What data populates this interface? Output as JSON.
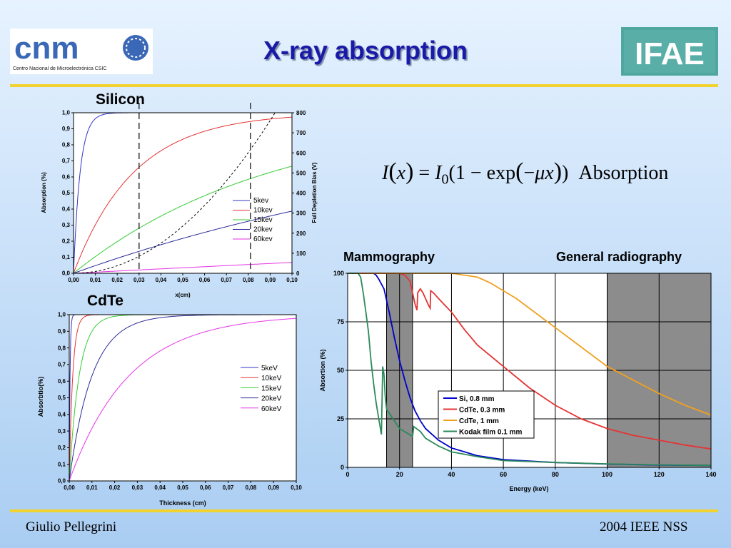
{
  "header": {
    "title": "X-ray absorption",
    "logo_left_text": "cnm",
    "logo_left_caption": "Centro Nacional de Microelectrónica     CSIC",
    "logo_right_text": "IFAE"
  },
  "labels": {
    "silicon": "Silicon",
    "cdte": "CdTe",
    "mammography": "Mammography",
    "general_radiography": "General radiography"
  },
  "formula": {
    "I": "I",
    "x": "x",
    "I0": "I",
    "sub0": "0",
    "mu": "μ",
    "word": "Absorption"
  },
  "footer": {
    "author": "Giulio Pellegrini",
    "event": "2004 IEEE NSS"
  },
  "colors": {
    "blue": "#3333cc",
    "red": "#e63333",
    "green": "#33cc33",
    "navy": "#2a2a9a",
    "magenta": "#e633e6",
    "dark_blue": "#0000cc",
    "orange": "#f0a020",
    "teal": "#2a8a5a",
    "accent_rule": "#f2d22e",
    "title": "#1a1aa8"
  },
  "chart_data": [
    {
      "id": "silicon",
      "type": "line",
      "ylabel": "Absorption (%)",
      "y2label": "Full Depletion Bias (V)",
      "xlabel": "x(cm)",
      "xlim": [
        0,
        0.1
      ],
      "ylim": [
        0,
        1
      ],
      "y2lim": [
        0,
        800
      ],
      "x_ticks": [
        "0,00",
        "0,01",
        "0,02",
        "0,03",
        "0,04",
        "0,05",
        "0,06",
        "0,07",
        "0,08",
        "0,09",
        "0,10"
      ],
      "y_ticks": [
        "0,0",
        "0,1",
        "0,2",
        "0,3",
        "0,4",
        "0,5",
        "0,6",
        "0,7",
        "0,8",
        "0,9",
        "1,0"
      ],
      "y2_ticks": [
        "0",
        "100",
        "200",
        "300",
        "400",
        "500",
        "600",
        "700",
        "800"
      ],
      "vlines": [
        0.03,
        0.081
      ],
      "series": [
        {
          "name": "5kev",
          "mu": 330,
          "color": "#3333cc"
        },
        {
          "name": "10kev",
          "mu": 36,
          "color": "#e63333"
        },
        {
          "name": "15kev",
          "mu": 11,
          "color": "#33cc33"
        },
        {
          "name": "20kev",
          "mu": 4.9,
          "color": "#2a2a9a"
        },
        {
          "name": "60kev",
          "mu": 0.7,
          "color": "#e633e6"
        }
      ],
      "bias_curve": {
        "coef": 94000,
        "style": "dashed"
      },
      "legend": "center-right"
    },
    {
      "id": "cdte",
      "type": "line",
      "ylabel": "Absorbtio(%)",
      "xlabel": "Thickness (cm)",
      "xlim": [
        0,
        0.1
      ],
      "ylim": [
        0,
        1
      ],
      "x_ticks": [
        "0,00",
        "0,01",
        "0,02",
        "0,03",
        "0,04",
        "0,05",
        "0,06",
        "0,07",
        "0,08",
        "0,09",
        "0,10"
      ],
      "y_ticks": [
        "0,0",
        "0,1",
        "0,2",
        "0,3",
        "0,4",
        "0,5",
        "0,6",
        "0,7",
        "0,8",
        "0,9",
        "1,0"
      ],
      "series": [
        {
          "name": "5keV",
          "mu": 3000,
          "color": "#3333cc"
        },
        {
          "name": "10keV",
          "mu": 650,
          "color": "#e63333"
        },
        {
          "name": "15keV",
          "mu": 230,
          "color": "#33cc33"
        },
        {
          "name": "20keV",
          "mu": 100,
          "color": "#2a2a9a"
        },
        {
          "name": "60keV",
          "mu": 38,
          "color": "#e633e6"
        }
      ],
      "legend": "center-right"
    },
    {
      "id": "energy",
      "type": "line",
      "ylabel": "Absortion (%)",
      "xlabel": "Energy (keV)",
      "xlim": [
        0,
        140
      ],
      "ylim": [
        0,
        100
      ],
      "x_ticks": [
        "0",
        "20",
        "40",
        "60",
        "80",
        "100",
        "120",
        "140"
      ],
      "y_ticks": [
        "0",
        "25",
        "50",
        "75",
        "100"
      ],
      "shaded_bands": [
        [
          15,
          25
        ],
        [
          100,
          140
        ]
      ],
      "series": [
        {
          "name": "Si, 0.8 mm",
          "color": "#0000cc",
          "x": [
            0,
            8,
            10,
            11,
            12,
            14,
            16,
            18,
            20,
            22,
            24,
            26,
            28,
            30,
            35,
            40,
            50,
            60,
            80,
            100,
            120,
            140
          ],
          "y": [
            100,
            100,
            100,
            99,
            97,
            92,
            80,
            67,
            55,
            45,
            36,
            29,
            24,
            20,
            14,
            10,
            6,
            4,
            2.5,
            1.7,
            1.2,
            1
          ]
        },
        {
          "name": "CdTe, 0.3 mm",
          "color": "#e63333",
          "x": [
            0,
            20,
            22,
            24,
            25,
            26,
            26.7,
            27,
            28,
            29,
            30,
            31,
            31.8,
            32,
            33,
            35,
            40,
            45,
            50,
            60,
            70,
            80,
            90,
            100,
            110,
            120,
            130,
            140
          ],
          "y": [
            100,
            100,
            99,
            96,
            90,
            84,
            81,
            90,
            92,
            90,
            87,
            84,
            82,
            91,
            90,
            87,
            80,
            71,
            63,
            52,
            41,
            32,
            25,
            20,
            16.5,
            14,
            11.5,
            9.5
          ]
        },
        {
          "name": "CdTe, 1 mm",
          "color": "#f0a020",
          "x": [
            0,
            40,
            50,
            55,
            60,
            65,
            70,
            80,
            90,
            100,
            110,
            120,
            130,
            140
          ],
          "y": [
            100,
            100,
            98,
            95,
            91,
            87,
            82,
            72,
            62,
            52,
            45,
            38,
            32,
            27
          ]
        },
        {
          "name": "Kodak film 0.1 mm",
          "color": "#2a8a5a",
          "x": [
            0,
            4,
            5,
            6,
            7,
            8,
            9,
            10,
            11,
            12,
            13,
            13.5,
            14,
            14.5,
            15,
            20,
            25,
            25.5,
            26,
            28,
            30,
            35,
            40,
            50,
            60,
            80,
            100,
            120,
            140
          ],
          "y": [
            100,
            100,
            98,
            90,
            80,
            70,
            55,
            43,
            33,
            25,
            17,
            52,
            48,
            36,
            30,
            20,
            16,
            21,
            20.5,
            18.5,
            15,
            11,
            8,
            5.5,
            3.5,
            2.5,
            1.8,
            1.3,
            1
          ]
        }
      ],
      "legend": "center-right"
    }
  ]
}
